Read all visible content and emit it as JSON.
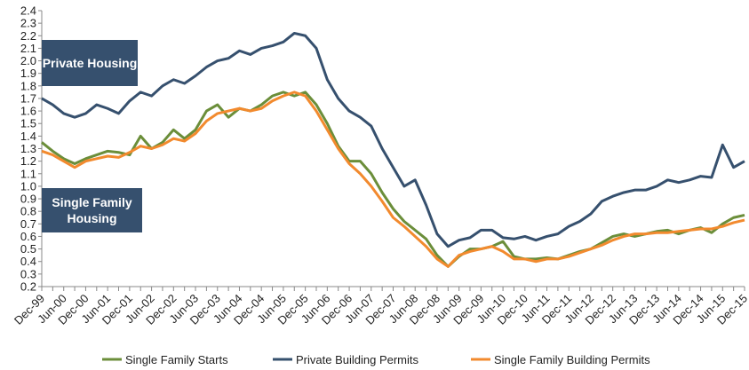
{
  "chart_data": {
    "type": "line",
    "categories": [
      "Dec-99",
      null,
      "Jun-00",
      null,
      "Dec-00",
      null,
      "Jun-01",
      null,
      "Dec-01",
      null,
      "Jun-02",
      null,
      "Dec-02",
      null,
      "Jun-03",
      null,
      "Dec-03",
      null,
      "Jun-04",
      null,
      "Dec-04",
      null,
      "Jun-05",
      null,
      "Dec-05",
      null,
      "Jun-06",
      null,
      "Dec-06",
      null,
      "Jun-07",
      null,
      "Dec-07",
      null,
      "Jun-08",
      null,
      "Dec-08",
      null,
      "Jun-09",
      null,
      "Dec-09",
      null,
      "Jun-10",
      null,
      "Dec-10",
      null,
      "Jun-11",
      null,
      "Dec-11",
      null,
      "Jun-12",
      null,
      "Dec-12",
      null,
      "Jun-13",
      null,
      "Dec-13",
      null,
      "Jun-14",
      null,
      "Dec-14",
      null,
      "Jun-15",
      null,
      "Dec-15"
    ],
    "series": [
      {
        "name": "Single Family Starts",
        "color": "#6b8e3a",
        "values": [
          1.35,
          1.28,
          1.22,
          1.18,
          1.22,
          1.25,
          1.28,
          1.27,
          1.25,
          1.4,
          1.3,
          1.35,
          1.45,
          1.38,
          1.45,
          1.6,
          1.65,
          1.55,
          1.62,
          1.6,
          1.65,
          1.72,
          1.75,
          1.72,
          1.75,
          1.65,
          1.5,
          1.32,
          1.2,
          1.2,
          1.1,
          0.95,
          0.82,
          0.72,
          0.65,
          0.58,
          0.45,
          0.36,
          0.44,
          0.5,
          0.5,
          0.52,
          0.56,
          0.44,
          0.42,
          0.42,
          0.43,
          0.42,
          0.45,
          0.48,
          0.5,
          0.55,
          0.6,
          0.62,
          0.6,
          0.62,
          0.64,
          0.65,
          0.62,
          0.65,
          0.67,
          0.63,
          0.7,
          0.75,
          0.77
        ]
      },
      {
        "name": "Private Building Permits",
        "color": "#36506e",
        "values": [
          1.7,
          1.65,
          1.58,
          1.55,
          1.58,
          1.65,
          1.62,
          1.58,
          1.68,
          1.75,
          1.72,
          1.8,
          1.85,
          1.82,
          1.88,
          1.95,
          2.0,
          2.02,
          2.08,
          2.05,
          2.1,
          2.12,
          2.15,
          2.22,
          2.2,
          2.1,
          1.85,
          1.7,
          1.6,
          1.55,
          1.48,
          1.3,
          1.15,
          1.0,
          1.05,
          0.85,
          0.62,
          0.52,
          0.57,
          0.59,
          0.65,
          0.65,
          0.59,
          0.58,
          0.6,
          0.57,
          0.6,
          0.62,
          0.68,
          0.72,
          0.78,
          0.88,
          0.92,
          0.95,
          0.97,
          0.97,
          1.0,
          1.05,
          1.03,
          1.05,
          1.08,
          1.07,
          1.33,
          1.15,
          1.2
        ]
      },
      {
        "name": "Single Family Building Permits",
        "color": "#f28a2e",
        "values": [
          1.28,
          1.25,
          1.2,
          1.15,
          1.2,
          1.22,
          1.24,
          1.23,
          1.27,
          1.32,
          1.3,
          1.33,
          1.38,
          1.36,
          1.42,
          1.52,
          1.58,
          1.6,
          1.62,
          1.6,
          1.62,
          1.68,
          1.72,
          1.75,
          1.72,
          1.6,
          1.45,
          1.3,
          1.18,
          1.1,
          1.0,
          0.88,
          0.75,
          0.68,
          0.6,
          0.52,
          0.42,
          0.36,
          0.45,
          0.48,
          0.5,
          0.52,
          0.48,
          0.42,
          0.42,
          0.4,
          0.42,
          0.42,
          0.44,
          0.47,
          0.5,
          0.53,
          0.57,
          0.6,
          0.62,
          0.62,
          0.63,
          0.63,
          0.64,
          0.65,
          0.66,
          0.66,
          0.68,
          0.71,
          0.73
        ]
      }
    ],
    "ylim": [
      0.2,
      2.4
    ],
    "yticks": [
      0.2,
      0.3,
      0.4,
      0.5,
      0.6,
      0.7,
      0.8,
      0.9,
      {
        "value": 1,
        "label": "1.0"
      },
      1.1,
      1.2,
      1.3,
      1.4,
      1.5,
      1.6,
      1.7,
      1.8,
      1.9,
      {
        "value": 2,
        "label": "2.0"
      },
      2.1,
      2.2,
      2.3,
      2.4
    ],
    "annotations": [
      {
        "text": "Private Housing"
      },
      {
        "text": "Single Family Housing"
      }
    ],
    "legend": "bottom"
  }
}
